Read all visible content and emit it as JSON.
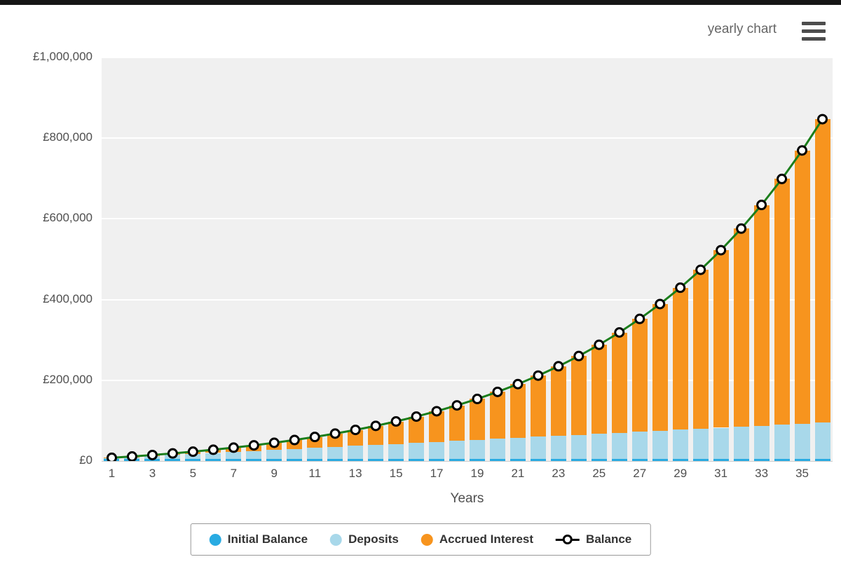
{
  "header": {
    "chart_mode_label": "yearly chart"
  },
  "chart_data": {
    "type": "bar",
    "stacked": true,
    "title": "",
    "xlabel": "Years",
    "ylabel": "",
    "ylim": [
      0,
      1000000
    ],
    "grid": true,
    "plot_background": "#f0f0f0",
    "gridline_color": "#ffffff",
    "y_ticks": [
      0,
      200000,
      400000,
      600000,
      800000,
      1000000
    ],
    "y_tick_labels": [
      "£0",
      "£200,000",
      "£400,000",
      "£600,000",
      "£800,000",
      "£1,000,000"
    ],
    "x": [
      1,
      2,
      3,
      4,
      5,
      6,
      7,
      8,
      9,
      10,
      11,
      12,
      13,
      14,
      15,
      16,
      17,
      18,
      19,
      20,
      21,
      22,
      23,
      24,
      25,
      26,
      27,
      28,
      29,
      30,
      31,
      32,
      33,
      34,
      35,
      36
    ],
    "x_tick_labels": [
      "1",
      "3",
      "5",
      "7",
      "9",
      "11",
      "13",
      "15",
      "17",
      "19",
      "21",
      "23",
      "25",
      "27",
      "29",
      "31",
      "33",
      "35"
    ],
    "series": [
      {
        "name": "Initial Balance",
        "type": "bar",
        "color": "#29ABE2",
        "values": [
          5000,
          5000,
          5000,
          5000,
          5000,
          5000,
          5000,
          5000,
          5000,
          5000,
          5000,
          5000,
          5000,
          5000,
          5000,
          5000,
          5000,
          5000,
          5000,
          5000,
          5000,
          5000,
          5000,
          5000,
          5000,
          5000,
          5000,
          5000,
          5000,
          5000,
          5000,
          5000,
          5000,
          5000,
          5000,
          5000
        ]
      },
      {
        "name": "Deposits",
        "type": "bar",
        "color": "#A8D8EA",
        "values": [
          2500,
          5000,
          7500,
          10000,
          12500,
          15000,
          17500,
          20000,
          22500,
          25000,
          27500,
          30000,
          32500,
          35000,
          37500,
          40000,
          42500,
          45000,
          47500,
          50000,
          52500,
          55000,
          57500,
          60000,
          62500,
          65000,
          67500,
          70000,
          72500,
          75000,
          77500,
          80000,
          82500,
          85000,
          87500,
          90000
        ]
      },
      {
        "name": "Accrued Interest",
        "type": "bar",
        "color": "#F7941E",
        "values": [
          487,
          1266,
          2364,
          3813,
          5649,
          7904,
          10626,
          13856,
          17644,
          22046,
          27120,
          32933,
          39558,
          47071,
          55559,
          65120,
          75857,
          87883,
          101326,
          116325,
          133031,
          151606,
          172237,
          195126,
          220488,
          248568,
          279630,
          313963,
          351886,
          393754,
          439946,
          490884,
          547032,
          608897,
          677036,
          752061
        ]
      },
      {
        "name": "Balance",
        "type": "line",
        "color": "#1B7E1B",
        "marker_fill": "#ffffff",
        "marker_stroke": "#000000",
        "values": [
          7987,
          11266,
          14864,
          18813,
          23149,
          27904,
          33126,
          38856,
          45144,
          52046,
          59620,
          67933,
          77058,
          87071,
          98059,
          110120,
          123357,
          137883,
          153826,
          171325,
          190531,
          211606,
          234737,
          260126,
          287988,
          318568,
          352130,
          388963,
          429386,
          473754,
          522446,
          575884,
          634532,
          698897,
          769536,
          847061
        ]
      }
    ],
    "legend": {
      "position": "bottom",
      "balance_glyph_line_color": "#000000"
    }
  }
}
